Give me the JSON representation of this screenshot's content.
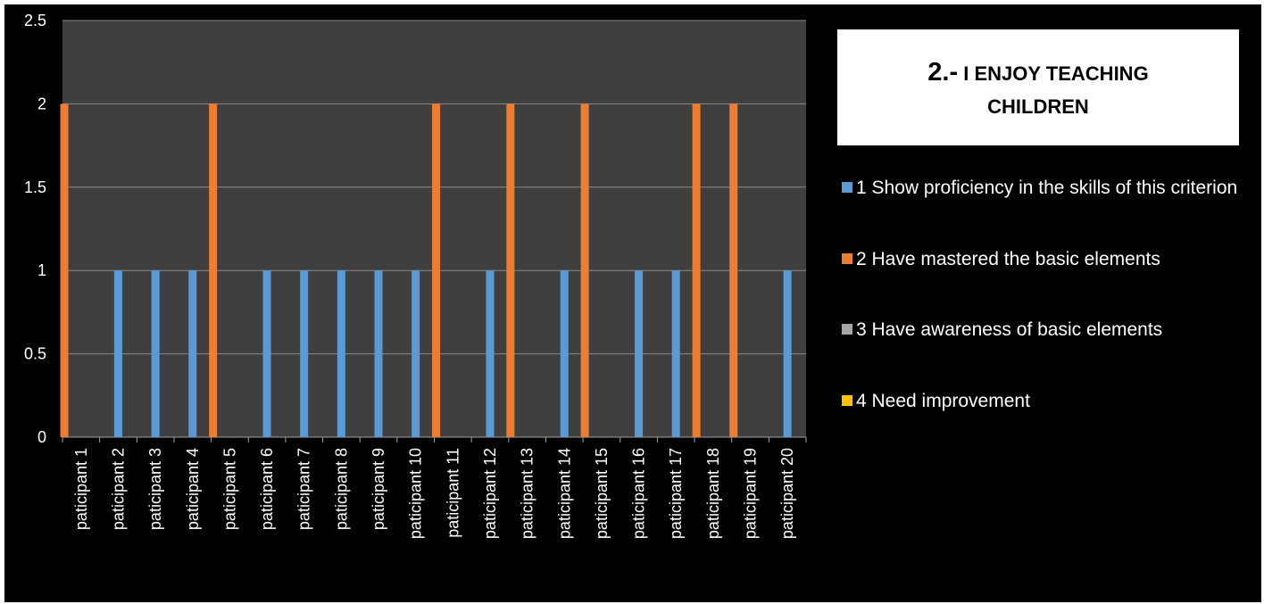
{
  "chart_data": {
    "type": "bar",
    "title_number": "2.-",
    "title_text": "I ENJOY TEACHING CHILDREN",
    "categories": [
      "paticipant 1",
      "paticipant 2",
      "paticipant 3",
      "paticipant 4",
      "paticipant 5",
      "paticipant 6",
      "paticipant 7",
      "paticipant 8",
      "paticipant 9",
      "paticipant 10",
      "paticipant 11",
      "paticipant 12",
      "paticipant 13",
      "paticipant 14",
      "paticipant 15",
      "paticipant 16",
      "paticipant 17",
      "paticipant 18",
      "paticipant 19",
      "paticipant 20"
    ],
    "series": [
      {
        "name": "1 Show proficiency in the skills of this criterion",
        "color": "#5b9bd5",
        "values": [
          0,
          1,
          1,
          1,
          0,
          1,
          1,
          1,
          1,
          1,
          0,
          1,
          0,
          1,
          0,
          1,
          1,
          0,
          0,
          1
        ]
      },
      {
        "name": "2 Have mastered the basic elements",
        "color": "#ed7d31",
        "values": [
          2,
          0,
          0,
          0,
          2,
          0,
          0,
          0,
          0,
          0,
          2,
          0,
          2,
          0,
          2,
          0,
          0,
          2,
          2,
          0
        ]
      },
      {
        "name": "3 Have awareness of basic elements",
        "color": "#a5a5a5",
        "values": [
          0,
          0,
          0,
          0,
          0,
          0,
          0,
          0,
          0,
          0,
          0,
          0,
          0,
          0,
          0,
          0,
          0,
          0,
          0,
          0
        ]
      },
      {
        "name": "4 Need improvement",
        "color": "#ffc000",
        "values": [
          0,
          0,
          0,
          0,
          0,
          0,
          0,
          0,
          0,
          0,
          0,
          0,
          0,
          0,
          0,
          0,
          0,
          0,
          0,
          0
        ]
      }
    ],
    "yticks": [
      "0",
      "0.5",
      "1",
      "1.5",
      "2",
      "2.5"
    ],
    "ylim": [
      0,
      2.5
    ],
    "grid": true,
    "legend_position": "right",
    "plot_background": "#3f3f3f",
    "page_background": "#000000"
  }
}
